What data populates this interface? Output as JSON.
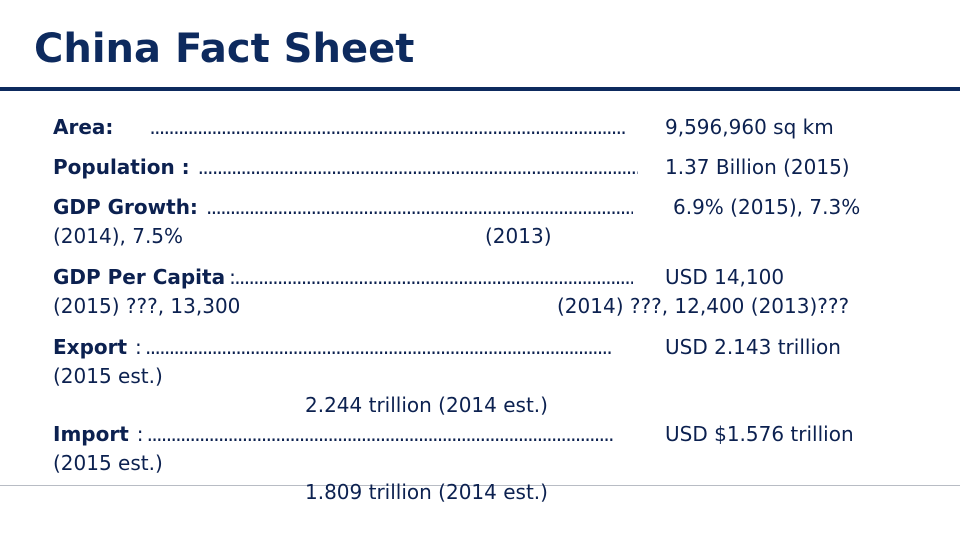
{
  "title": "China Fact Sheet",
  "facts": [
    {
      "label": "Area:",
      "leader": "....................................................................................................",
      "value": "9,596,960 sq km"
    },
    {
      "label": "Population :",
      "leader": "....................................................................................................",
      "value": "1.37 Billion (2015)"
    },
    {
      "label": "GDP Growth:",
      "leader": "....................................................................................................",
      "value": "6.9% (2015), 7.3%",
      "continuation": [
        "(2014), 7.5%",
        "(2013)"
      ]
    },
    {
      "label": "GDP Per Capita",
      "leader": ":...................................................................................................",
      "value": "USD 14,100",
      "continuation": [
        "(2015) ???, 13,300",
        "(2014) ???, 12,400 (2013)???"
      ]
    },
    {
      "label": "Export",
      "leader": ": ..................................................................................................",
      "value": "USD 2.143 trillion",
      "continuation": [
        "(2015 est.)",
        "2.244 trillion (2014 est.)"
      ]
    },
    {
      "label": "Import",
      "leader": ": ..................................................................................................",
      "value": "USD $1.576 trillion",
      "continuation": [
        "(2015 est.)",
        "1.809 trillion (2014 est.)"
      ]
    }
  ]
}
